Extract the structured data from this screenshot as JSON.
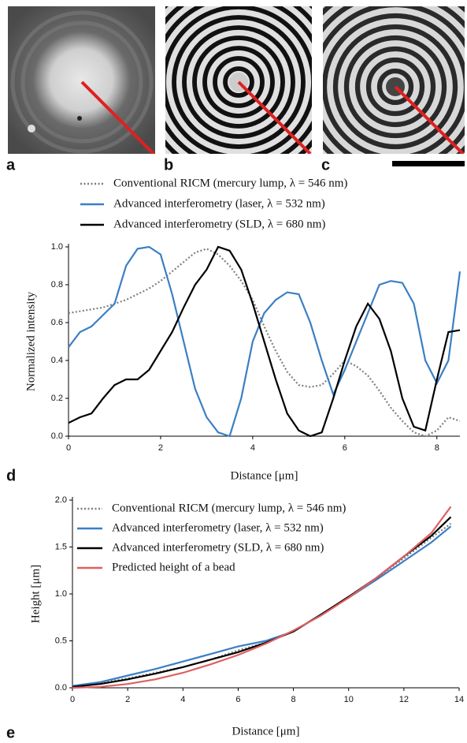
{
  "images": [
    {
      "label": "a"
    },
    {
      "label": "b"
    },
    {
      "label": "c"
    }
  ],
  "chart_data": [
    {
      "type": "line",
      "panel_label": "d",
      "legend": "top",
      "x_label": "Distance [μm]",
      "y_label": "Normalized intensity",
      "xlim": [
        0,
        8.5
      ],
      "xticks": [
        0,
        2,
        4,
        6,
        8
      ],
      "ylim": [
        0,
        1.0
      ],
      "yticks": [
        {
          "value": 0,
          "label": "0.0"
        },
        0.2,
        0.4,
        0.6,
        0.8,
        {
          "value": 1,
          "label": "1.0"
        }
      ],
      "x": [
        0,
        0.25,
        0.5,
        0.75,
        1,
        1.25,
        1.5,
        1.75,
        2,
        2.25,
        2.5,
        2.75,
        3,
        3.25,
        3.5,
        3.75,
        4,
        4.25,
        4.5,
        4.75,
        5,
        5.25,
        5.5,
        5.75,
        6,
        6.25,
        6.5,
        6.75,
        7,
        7.25,
        7.5,
        7.75,
        8,
        8.25,
        8.5
      ],
      "series": [
        {
          "name": "Conventional RICM (mercury lump, λ = 546 nm)",
          "color": "#7f7f7f",
          "style": "dotted",
          "values": [
            0.65,
            0.66,
            0.67,
            0.68,
            0.7,
            0.72,
            0.75,
            0.78,
            0.82,
            0.87,
            0.92,
            0.97,
            0.99,
            0.96,
            0.9,
            0.82,
            0.72,
            0.58,
            0.45,
            0.34,
            0.27,
            0.26,
            0.27,
            0.33,
            0.4,
            0.37,
            0.32,
            0.24,
            0.15,
            0.08,
            0.02,
            0.0,
            0.03,
            0.1,
            0.08
          ]
        },
        {
          "name": "Advanced interferometry (laser, λ = 532 nm)",
          "color": "#3b7fc4",
          "style": "solid",
          "values": [
            0.47,
            0.55,
            0.58,
            0.64,
            0.7,
            0.9,
            0.99,
            1.0,
            0.96,
            0.75,
            0.5,
            0.25,
            0.1,
            0.02,
            0.0,
            0.2,
            0.5,
            0.65,
            0.72,
            0.76,
            0.75,
            0.6,
            0.4,
            0.22,
            0.35,
            0.5,
            0.65,
            0.8,
            0.82,
            0.81,
            0.7,
            0.4,
            0.28,
            0.4,
            0.87
          ]
        },
        {
          "name": "Advanced interferometry (SLD, λ = 680 nm)",
          "color": "#000000",
          "style": "solid",
          "values": [
            0.07,
            0.1,
            0.12,
            0.2,
            0.27,
            0.3,
            0.3,
            0.35,
            0.45,
            0.55,
            0.68,
            0.8,
            0.88,
            1.0,
            0.98,
            0.88,
            0.7,
            0.5,
            0.3,
            0.12,
            0.03,
            0.0,
            0.02,
            0.2,
            0.4,
            0.58,
            0.7,
            0.62,
            0.45,
            0.2,
            0.05,
            0.03,
            0.3,
            0.55,
            0.56
          ]
        }
      ]
    },
    {
      "type": "line",
      "panel_label": "e",
      "legend": "upper left",
      "x_label": "Distance [μm]",
      "y_label": "Height [μm]",
      "xlim": [
        0,
        14
      ],
      "xticks": [
        0,
        2,
        4,
        6,
        8,
        10,
        12,
        14
      ],
      "ylim": [
        0,
        2.0
      ],
      "yticks": [
        {
          "value": 0,
          "label": "0.0"
        },
        0.5,
        {
          "value": 1,
          "label": "1.0"
        },
        1.5,
        {
          "value": 2,
          "label": "2.0"
        }
      ],
      "x": [
        0,
        1,
        2,
        3,
        4,
        5,
        6,
        7,
        8,
        9,
        10,
        11,
        12,
        13,
        13.7
      ],
      "series": [
        {
          "name": "Conventional RICM (mercury lump, λ = 546 nm)",
          "color": "#7f7f7f",
          "style": "dotted",
          "values": [
            0,
            0.05,
            0.1,
            0.16,
            0.22,
            0.3,
            0.4,
            0.48,
            0.6,
            0.78,
            0.97,
            1.17,
            1.38,
            1.6,
            1.75
          ]
        },
        {
          "name": "Advanced interferometry (laser, λ = 532 nm)",
          "color": "#3b7fc4",
          "style": "solid",
          "values": [
            0.02,
            0.06,
            0.13,
            0.2,
            0.28,
            0.36,
            0.44,
            0.5,
            0.6,
            0.78,
            0.96,
            1.15,
            1.35,
            1.55,
            1.72
          ]
        },
        {
          "name": "Advanced interferometry (SLD, λ = 680 nm)",
          "color": "#000000",
          "style": "solid",
          "values": [
            0.01,
            0.04,
            0.09,
            0.15,
            0.22,
            0.3,
            0.38,
            0.48,
            0.6,
            0.78,
            0.97,
            1.17,
            1.4,
            1.62,
            1.82
          ]
        },
        {
          "name": "Predicted height of a bead",
          "color": "#e06060",
          "style": "solid",
          "values": [
            0,
            0.01,
            0.04,
            0.09,
            0.16,
            0.25,
            0.35,
            0.47,
            0.61,
            0.77,
            0.96,
            1.17,
            1.4,
            1.65,
            1.93
          ]
        }
      ]
    }
  ]
}
